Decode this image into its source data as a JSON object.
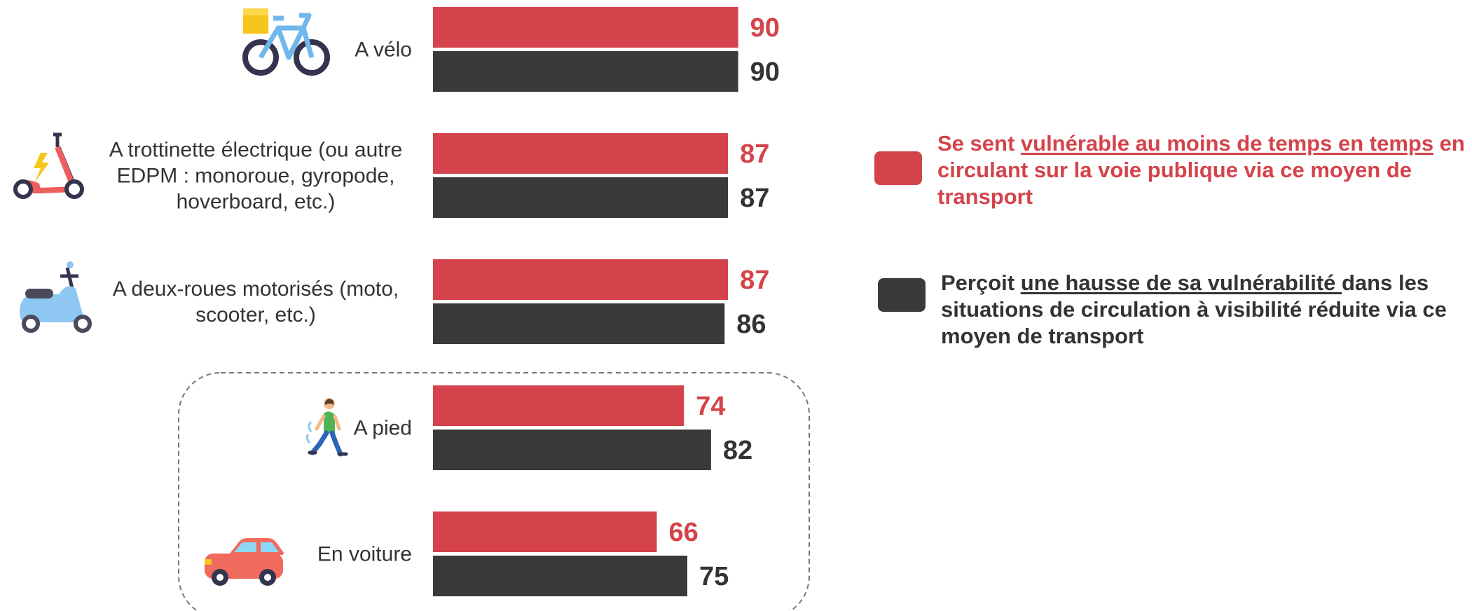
{
  "chart_data": {
    "type": "bar",
    "orientation": "horizontal",
    "categories": [
      [
        "A vélo"
      ],
      [
        "A trottinette électrique (ou autre",
        "EDPM : monoroue, gyropode,",
        "hoverboard, etc.)"
      ],
      [
        "A deux-roues motorisés (moto,",
        "scooter, etc.)"
      ],
      [
        "A pied"
      ],
      [
        "En voiture"
      ]
    ],
    "icons": [
      "bicycle-icon",
      "electric-scooter-icon",
      "motor-scooter-icon",
      "pedestrian-icon",
      "car-icon"
    ],
    "series": [
      {
        "values": [
          90,
          87,
          87,
          74,
          66
        ],
        "color": "#d4434b"
      },
      {
        "values": [
          90,
          87,
          86,
          82,
          75
        ],
        "color": "#3a3a3a"
      }
    ],
    "grouped_categories": [
      3,
      4
    ],
    "legend_placement": "right",
    "grid": false
  },
  "legend": {
    "red": {
      "prefix": "Se sent ",
      "underlined": "vulnérable au moins de temps en temps",
      "suffix": " en circulant sur la voie publique via ce moyen de transport"
    },
    "dark": {
      "prefix": "Perçoit ",
      "underlined": "une hausse de sa vulnérabilité ",
      "suffix": "dans les situations de circulation à visibilité réduite via ce moyen de transport"
    }
  }
}
